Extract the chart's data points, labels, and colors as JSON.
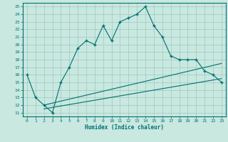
{
  "xlabel": "Humidex (Indice chaleur)",
  "ylabel": "",
  "bg_color": "#c8e8e0",
  "grid_color": "#a0c8c0",
  "line_color": "#007070",
  "xlim": [
    -0.5,
    23.5
  ],
  "ylim": [
    10.5,
    25.5
  ],
  "yticks": [
    11,
    12,
    13,
    14,
    15,
    16,
    17,
    18,
    19,
    20,
    21,
    22,
    23,
    24,
    25
  ],
  "xticks": [
    0,
    1,
    2,
    3,
    4,
    5,
    6,
    7,
    8,
    9,
    10,
    11,
    12,
    13,
    14,
    15,
    16,
    17,
    18,
    19,
    20,
    21,
    22,
    23
  ],
  "main_x": [
    0,
    1,
    2,
    3,
    4,
    5,
    6,
    7,
    8,
    9,
    10,
    11,
    12,
    13,
    14,
    15,
    16,
    17,
    18,
    19,
    20,
    21,
    22,
    23
  ],
  "main_y": [
    16,
    13,
    12,
    11,
    15,
    17,
    19.5,
    20.5,
    20,
    22.5,
    20.5,
    23,
    23.5,
    24,
    25,
    22.5,
    21,
    18.5,
    18,
    18,
    18,
    16.5,
    16,
    15
  ],
  "line1_x": [
    2,
    23
  ],
  "line1_y": [
    12.0,
    17.5
  ],
  "line2_x": [
    2,
    23
  ],
  "line2_y": [
    11.5,
    15.5
  ]
}
